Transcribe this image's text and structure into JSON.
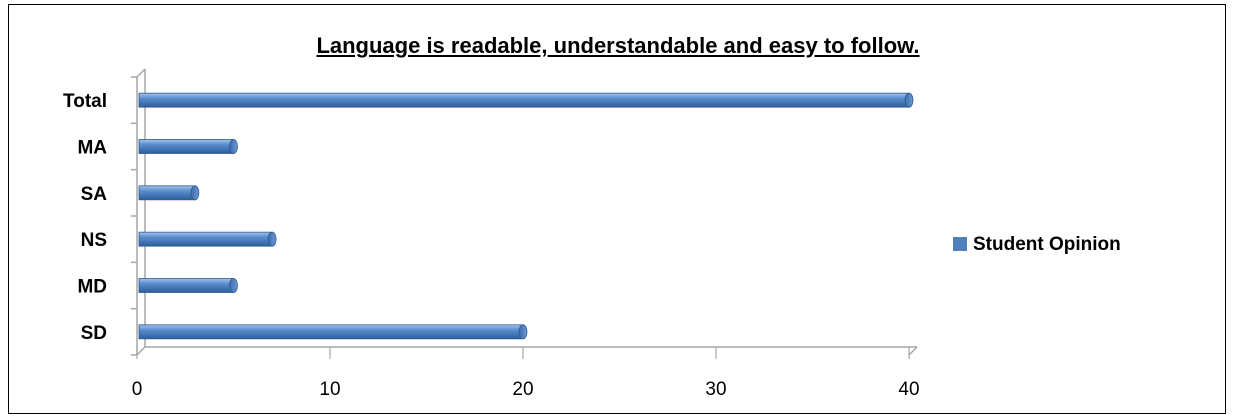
{
  "chart_data": {
    "type": "bar",
    "orientation": "horizontal",
    "title": "Language is readable, understandable and easy to follow.",
    "categories": [
      "SD",
      "MD",
      "NS",
      "SA",
      "MA",
      "Total"
    ],
    "series": [
      {
        "name": "Student Opinion",
        "values": [
          20,
          5,
          7,
          3,
          5,
          40
        ],
        "color": "#4F81BD"
      }
    ],
    "xlim": [
      0,
      40
    ],
    "xticks": [
      0,
      10,
      20,
      30,
      40
    ],
    "grid": false,
    "legend_position": "right"
  }
}
